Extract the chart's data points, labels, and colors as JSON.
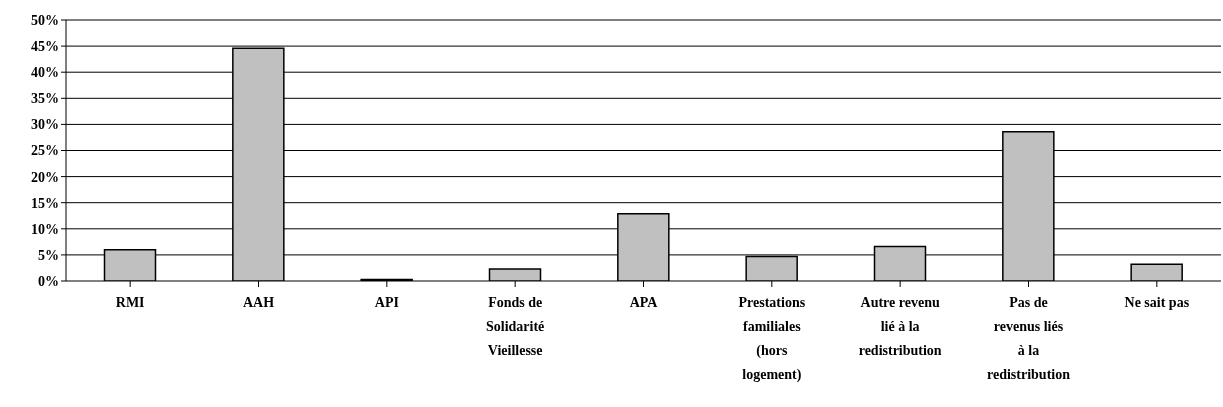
{
  "chart_data": {
    "type": "bar",
    "categories": [
      "RMI",
      "AAH",
      "API",
      "Fonds de Solidarité Vieillesse",
      "APA",
      "Prestations familiales (hors logement)",
      "Autre revenu lié à la redistribution",
      "Pas de revenus liés à la redistribution",
      "Ne sait pas"
    ],
    "values": [
      6.0,
      44.6,
      0.3,
      2.3,
      12.9,
      4.7,
      6.6,
      28.6,
      3.2
    ],
    "color": "#c0c0c0",
    "ylim": [
      0,
      50
    ],
    "yticks": [
      {
        "value": 0,
        "label": "0%"
      },
      {
        "value": 5,
        "label": "5%"
      },
      {
        "value": 10,
        "label": "10%"
      },
      {
        "value": 15,
        "label": "15%"
      },
      {
        "value": 20,
        "label": "20%"
      },
      {
        "value": 25,
        "label": "25%"
      },
      {
        "value": 30,
        "label": "30%"
      },
      {
        "value": 35,
        "label": "35%"
      },
      {
        "value": 40,
        "label": "40%"
      },
      {
        "value": 45,
        "label": "45%"
      },
      {
        "value": 50,
        "label": "50%"
      }
    ],
    "grid": "y",
    "legend": false
  }
}
